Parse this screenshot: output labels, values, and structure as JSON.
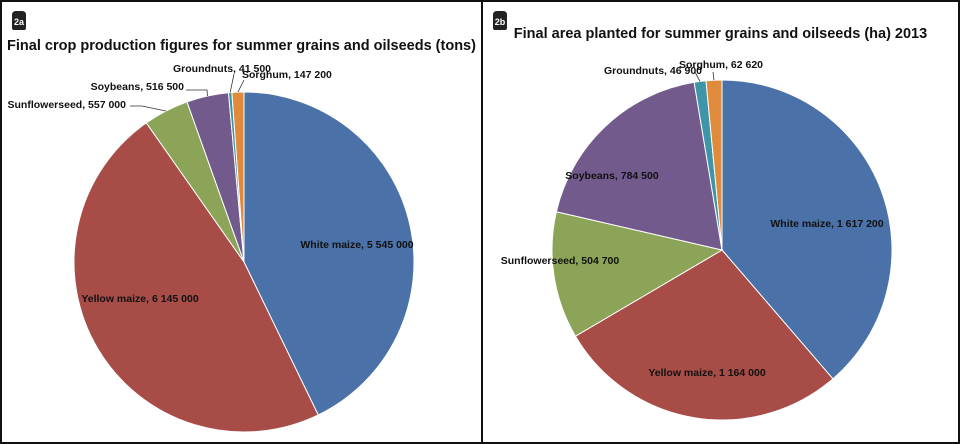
{
  "chart_data": [
    {
      "type": "pie",
      "badge": "2a",
      "title": "Final crop production figures for summer grains and oilseeds (tons)",
      "slices": [
        {
          "name": "White maize",
          "value": 5545000,
          "label": "White maize, 5 545 000",
          "color": "#4A72A8"
        },
        {
          "name": "Yellow maize",
          "value": 6145000,
          "label": "Yellow maize, 6 145 000",
          "color": "#A84C48"
        },
        {
          "name": "Sunflowerseed",
          "value": 557000,
          "label": "Sunflowerseed, 557 000",
          "color": "#8CA457"
        },
        {
          "name": "Soybeans",
          "value": 516500,
          "label": "Soybeans, 516 500",
          "color": "#725B8C"
        },
        {
          "name": "Groundnuts",
          "value": 41500,
          "label": "Groundnuts, 41 500",
          "color": "#3F95A8"
        },
        {
          "name": "Sorghum",
          "value": 147200,
          "label": "Sorghum, 147 200",
          "color": "#E08A3C"
        }
      ],
      "order": [
        "White maize",
        "Yellow maize",
        "Sunflowerseed",
        "Soybeans",
        "Groundnuts",
        "Sorghum"
      ]
    },
    {
      "type": "pie",
      "badge": "2b",
      "title": "Final area planted for summer grains and oilseeds (ha) 2013",
      "slices": [
        {
          "name": "White maize",
          "value": 1617200,
          "label": "White maize, 1 617 200",
          "color": "#4A72A8"
        },
        {
          "name": "Yellow maize",
          "value": 1164000,
          "label": "Yellow maize, 1 164 000",
          "color": "#A84C48"
        },
        {
          "name": "Sunflowerseed",
          "value": 504700,
          "label": "Sunflowerseed, 504 700",
          "color": "#8CA457"
        },
        {
          "name": "Soybeans",
          "value": 784500,
          "label": "Soybeans, 784 500",
          "color": "#725B8C"
        },
        {
          "name": "Groundnuts",
          "value": 46900,
          "label": "Groundnuts, 46 900",
          "color": "#3F95A8"
        },
        {
          "name": "Sorghum",
          "value": 62620,
          "label": "Sorghum, 62 620",
          "color": "#E08A3C"
        }
      ]
    }
  ]
}
